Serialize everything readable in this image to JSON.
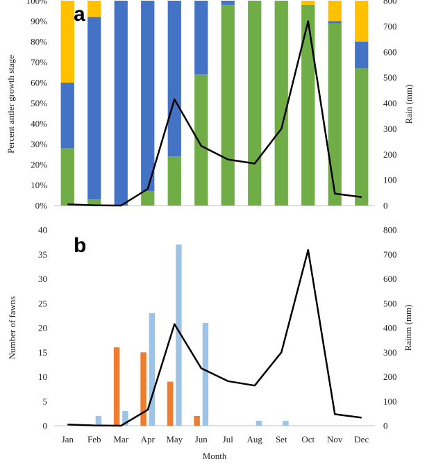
{
  "colors": {
    "green": "#70ad47",
    "blue": "#4472c4",
    "yellow": "#ffc000",
    "orange": "#ed7d31",
    "lightblue": "#9dc3e6",
    "line": "#000000",
    "grid": "#d9d9d9",
    "axis": "#bfbfbf"
  },
  "chart_data": [
    {
      "type": "bar",
      "stacked": true,
      "panel_letter": "a",
      "categories": [
        "Jan",
        "Feb",
        "Mar",
        "Apr",
        "May",
        "Jun",
        "Jul",
        "Aug",
        "Set",
        "Oct",
        "Nov",
        "Dec"
      ],
      "series": [
        {
          "values": [
            28,
            3,
            0,
            7,
            24,
            64,
            98,
            100,
            100,
            98,
            89,
            67
          ],
          "color": "#70ad47"
        },
        {
          "values": [
            32,
            89,
            100,
            93,
            76,
            36,
            2,
            0,
            0,
            0,
            1,
            13
          ],
          "color": "#4472c4"
        },
        {
          "values": [
            40,
            8,
            0,
            0,
            0,
            0,
            0,
            0,
            0,
            2,
            10,
            20
          ],
          "color": "#ffc000"
        }
      ],
      "line_series": {
        "axis": "right",
        "values": [
          5,
          1,
          0,
          65,
          415,
          233,
          180,
          164,
          300,
          720,
          47,
          33
        ]
      },
      "ylabel": "Percent antler growth stage",
      "y2label": "Rain (mm)",
      "ylim": [
        0,
        100
      ],
      "y2lim": [
        0,
        800
      ],
      "yticks": [
        "0%",
        "10%",
        "20%",
        "30%",
        "40%",
        "50%",
        "60%",
        "70%",
        "80%",
        "90%",
        "100%"
      ],
      "y2ticks": [
        "0",
        "100",
        "200",
        "300",
        "400",
        "500",
        "600",
        "700",
        "800"
      ],
      "grid": false,
      "legend": "none"
    },
    {
      "type": "bar",
      "panel_letter": "b",
      "categories": [
        "Jan",
        "Feb",
        "Mar",
        "Apr",
        "May",
        "Jun",
        "Jul",
        "Aug",
        "Set",
        "Oct",
        "Nov",
        "Dec"
      ],
      "series": [
        {
          "values": [
            0,
            0,
            16,
            15,
            9,
            2,
            0,
            0,
            0,
            0,
            0,
            0
          ],
          "color": "#ed7d31"
        },
        {
          "values": [
            0,
            2,
            3,
            23,
            37,
            21,
            0,
            1,
            1,
            0,
            0,
            0
          ],
          "color": "#9dc3e6"
        }
      ],
      "line_series": {
        "axis": "right",
        "values": [
          5,
          1,
          0,
          65,
          415,
          235,
          182,
          164,
          300,
          718,
          47,
          33
        ]
      },
      "xlabel": "Month",
      "ylabel": "Number of fawns",
      "y2label": "Rainm (mm)",
      "ylim": [
        0,
        40
      ],
      "y2lim": [
        0,
        800
      ],
      "yticks": [
        "0",
        "5",
        "10",
        "15",
        "20",
        "25",
        "30",
        "35",
        "40"
      ],
      "y2ticks": [
        "0",
        "100",
        "200",
        "300",
        "400",
        "500",
        "600",
        "700",
        "800"
      ],
      "grid": false,
      "legend": "none"
    }
  ]
}
